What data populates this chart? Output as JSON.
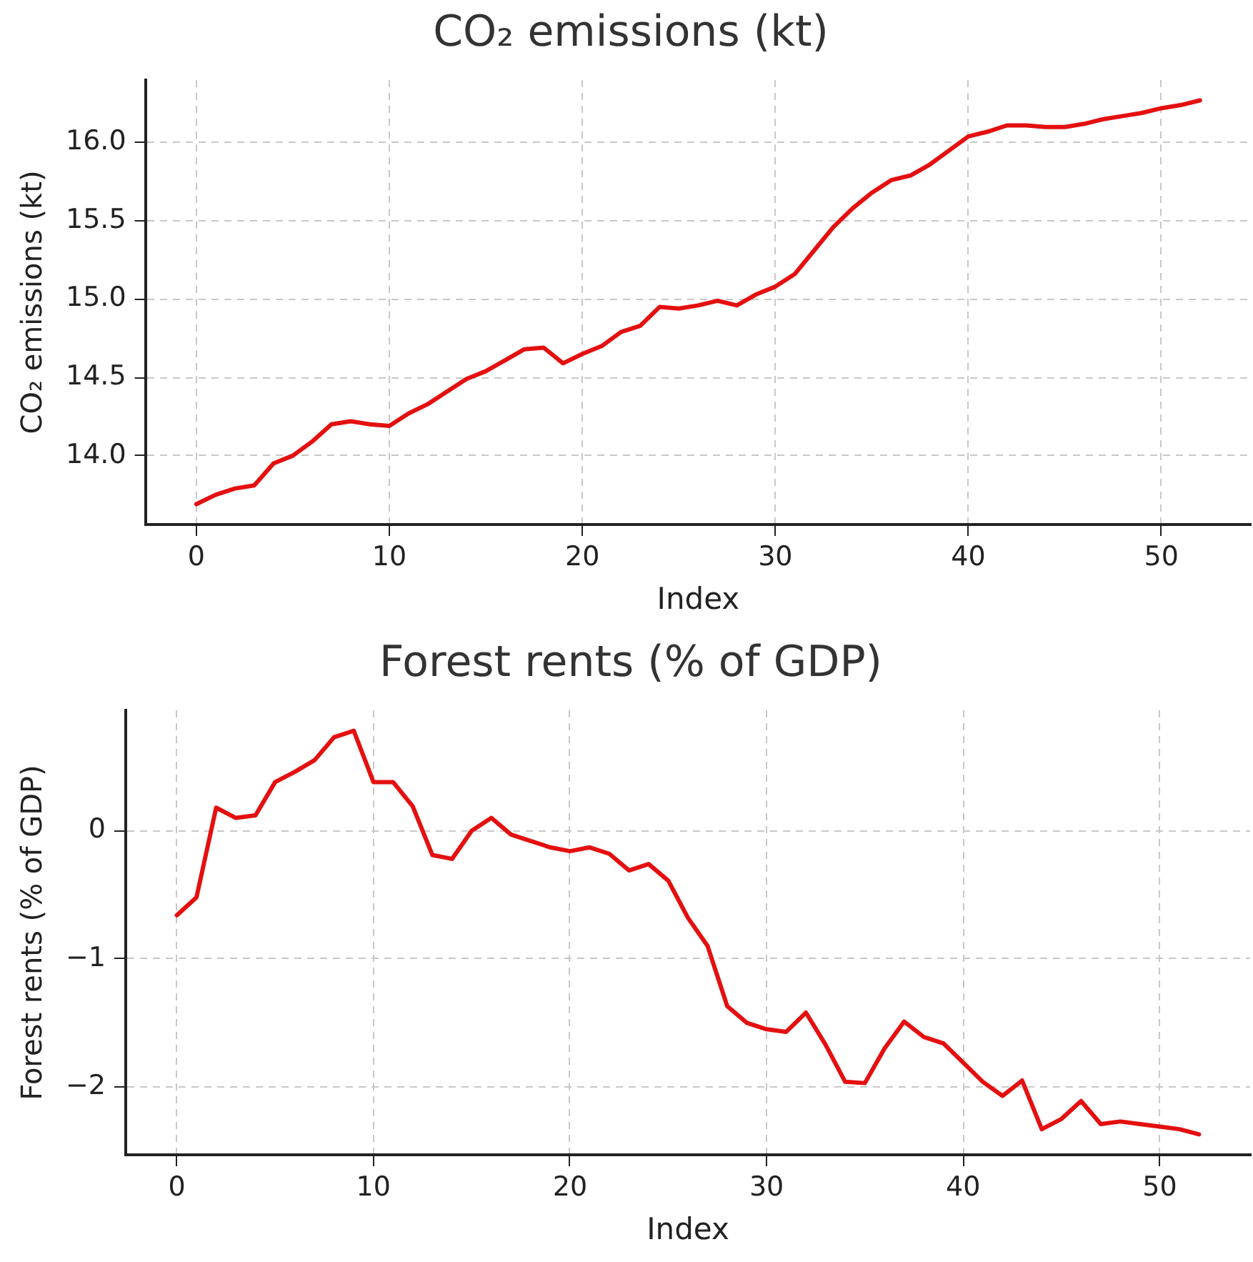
{
  "chart_data": [
    {
      "type": "line",
      "title": "CO₂ emissions (kt)",
      "xlabel": "Index",
      "ylabel": "CO₂ emissions (kt)",
      "x": [
        0,
        1,
        2,
        3,
        4,
        5,
        6,
        7,
        8,
        9,
        10,
        11,
        12,
        13,
        14,
        15,
        16,
        17,
        18,
        19,
        20,
        21,
        22,
        23,
        24,
        25,
        26,
        27,
        28,
        29,
        30,
        31,
        32,
        33,
        34,
        35,
        36,
        37,
        38,
        39,
        40,
        41,
        42,
        43,
        44,
        45,
        46,
        47,
        48,
        49,
        50,
        51,
        52
      ],
      "series": [
        {
          "color": "#e41010",
          "values": [
            13.69,
            13.75,
            13.79,
            13.81,
            13.95,
            14.0,
            14.09,
            14.2,
            14.22,
            14.2,
            14.19,
            14.27,
            14.33,
            14.41,
            14.49,
            14.54,
            14.61,
            14.68,
            14.69,
            14.59,
            14.65,
            14.7,
            14.79,
            14.83,
            14.95,
            14.94,
            14.96,
            14.99,
            14.96,
            15.03,
            15.08,
            15.16,
            15.31,
            15.46,
            15.58,
            15.68,
            15.76,
            15.79,
            15.86,
            15.95,
            16.04,
            16.07,
            16.11,
            16.11,
            16.1,
            16.1,
            16.12,
            16.15,
            16.17,
            16.19,
            16.22,
            16.24,
            16.27
          ]
        }
      ],
      "xlim": [
        -2.6,
        54.6
      ],
      "xticks": [
        0,
        10,
        20,
        30,
        40,
        50
      ],
      "ylim": [
        13.56,
        16.4
      ],
      "yticks": [
        {
          "value": 14,
          "label": "14.0"
        },
        {
          "value": 14.5,
          "label": "14.5"
        },
        {
          "value": 15,
          "label": "15.0"
        },
        {
          "value": 15.5,
          "label": "15.5"
        },
        {
          "value": 16,
          "label": "16.0"
        }
      ],
      "grid": true,
      "legend": false,
      "marker": "none",
      "line_style": "solid"
    },
    {
      "type": "line",
      "title": "Forest rents (% of GDP)",
      "xlabel": "Index",
      "ylabel": "Forest rents (% of GDP)",
      "x": [
        0,
        1,
        2,
        3,
        4,
        5,
        6,
        7,
        8,
        9,
        10,
        11,
        12,
        13,
        14,
        15,
        16,
        17,
        18,
        19,
        20,
        21,
        22,
        23,
        24,
        25,
        26,
        27,
        28,
        29,
        30,
        31,
        32,
        33,
        34,
        35,
        36,
        37,
        38,
        39,
        40,
        41,
        42,
        43,
        44,
        45,
        46,
        47,
        48,
        49,
        50,
        51,
        52
      ],
      "series": [
        {
          "color": "#e41010",
          "values": [
            -0.66,
            -0.52,
            0.18,
            0.1,
            0.12,
            0.38,
            0.46,
            0.55,
            0.73,
            0.78,
            0.38,
            0.38,
            0.19,
            -0.19,
            -0.22,
            0.0,
            0.1,
            -0.03,
            -0.08,
            -0.13,
            -0.16,
            -0.13,
            -0.18,
            -0.31,
            -0.26,
            -0.39,
            -0.68,
            -0.9,
            -1.37,
            -1.5,
            -1.55,
            -1.57,
            -1.42,
            -1.67,
            -1.96,
            -1.97,
            -1.7,
            -1.49,
            -1.61,
            -1.66,
            -1.81,
            -1.96,
            -2.07,
            -1.95,
            -2.33,
            -2.25,
            -2.11,
            -2.29,
            -2.27,
            -2.29,
            -2.31,
            -2.33,
            -2.37
          ]
        }
      ],
      "xlim": [
        -2.6,
        54.6
      ],
      "xticks": [
        0,
        10,
        20,
        30,
        40,
        50
      ],
      "ylim": [
        -2.53,
        0.94
      ],
      "yticks": [
        {
          "value": -2,
          "label": "−2"
        },
        {
          "value": -1,
          "label": "−1"
        },
        0
      ],
      "grid": true,
      "legend": false,
      "marker": "none",
      "line_style": "solid"
    }
  ]
}
